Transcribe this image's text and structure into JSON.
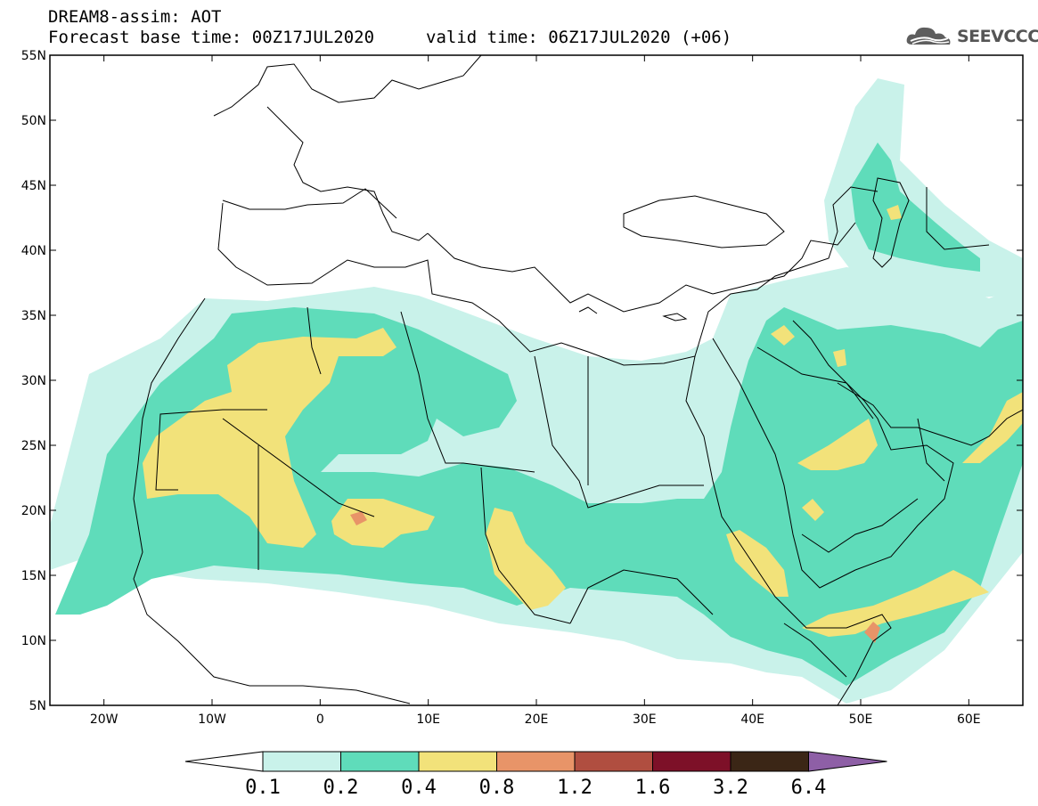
{
  "header": {
    "title": "DREAM8-assim: AOT",
    "forecast": "Forecast base time: 00Z17JUL2020",
    "valid": "valid time: 06Z17JUL2020 (+06)"
  },
  "logo": {
    "text": "SEEVCCC",
    "icon": "cloud-logo-icon"
  },
  "map": {
    "lon_range": [
      -25,
      65
    ],
    "lat_range": [
      5,
      55
    ],
    "lat_labels": [
      "55N",
      "50N",
      "45N",
      "40N",
      "35N",
      "30N",
      "25N",
      "20N",
      "15N",
      "10N",
      "5N"
    ],
    "lat_values": [
      55,
      50,
      45,
      40,
      35,
      30,
      25,
      20,
      15,
      10,
      5
    ],
    "lon_labels": [
      "20W",
      "10W",
      "0",
      "10E",
      "20E",
      "30E",
      "40E",
      "50E",
      "60E"
    ],
    "lon_values": [
      -20,
      -10,
      0,
      10,
      20,
      30,
      40,
      50,
      60
    ]
  },
  "colorbar": {
    "levels": [
      "0.1",
      "0.2",
      "0.4",
      "0.8",
      "1.2",
      "1.6",
      "3.2",
      "6.4"
    ],
    "colors": [
      "#c9f2ea",
      "#5fdcba",
      "#f2e27a",
      "#e89468",
      "#b04e40",
      "#7d1028",
      "#3b2616",
      "#8e5fa6"
    ]
  }
}
